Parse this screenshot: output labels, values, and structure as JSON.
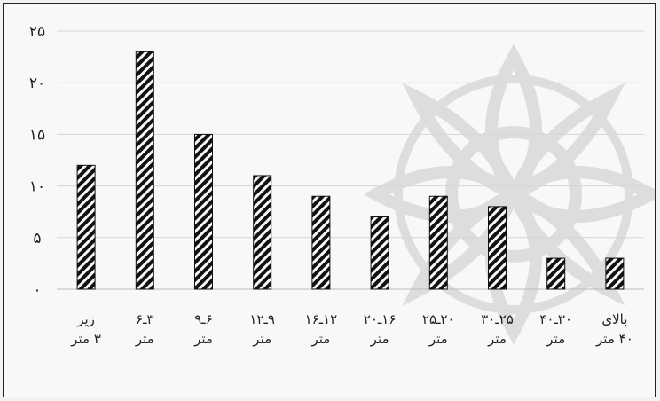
{
  "chart_data": {
    "type": "bar",
    "title": "",
    "xlabel": "",
    "ylabel": "",
    "ylim": [
      0,
      25
    ],
    "yticks": [
      {
        "value": 0,
        "label": "۰"
      },
      {
        "value": 5,
        "label": "۵"
      },
      {
        "value": 10,
        "label": "۱۰"
      },
      {
        "value": 15,
        "label": "۱۵"
      },
      {
        "value": 20,
        "label": "۲۰"
      },
      {
        "value": 25,
        "label": "۲۵"
      }
    ],
    "grid": true,
    "legend": "none",
    "bar_pattern": "diagonal-hatch",
    "bar_color": "#111111",
    "categories": [
      [
        "زیر",
        "۳ متر"
      ],
      [
        "۳ـ۶",
        "متر"
      ],
      [
        "۶ـ۹",
        "متر"
      ],
      [
        "۹ـ۱۲",
        "متر"
      ],
      [
        "۱۲ـ۱۶",
        "متر"
      ],
      [
        "۱۶ـ۲۰",
        "متر"
      ],
      [
        "۲۰ـ۲۵",
        "متر"
      ],
      [
        "۲۵ـ۳۰",
        "متر"
      ],
      [
        "۳۰ـ۴۰",
        "متر"
      ],
      [
        "بالای",
        "۴۰ متر"
      ]
    ],
    "values": [
      12,
      23,
      15,
      11,
      9,
      7,
      9,
      8,
      3,
      3
    ]
  }
}
